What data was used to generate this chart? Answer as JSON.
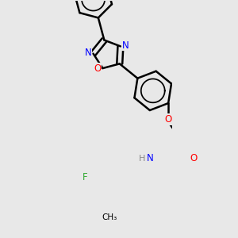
{
  "bg_color": "#e8e8e8",
  "bond_color": "#000000",
  "bond_width": 1.8,
  "atom_colors": {
    "N": "#0000ff",
    "O": "#ff0000",
    "F": "#33aa33",
    "H": "#888888"
  },
  "font_size": 8.5
}
